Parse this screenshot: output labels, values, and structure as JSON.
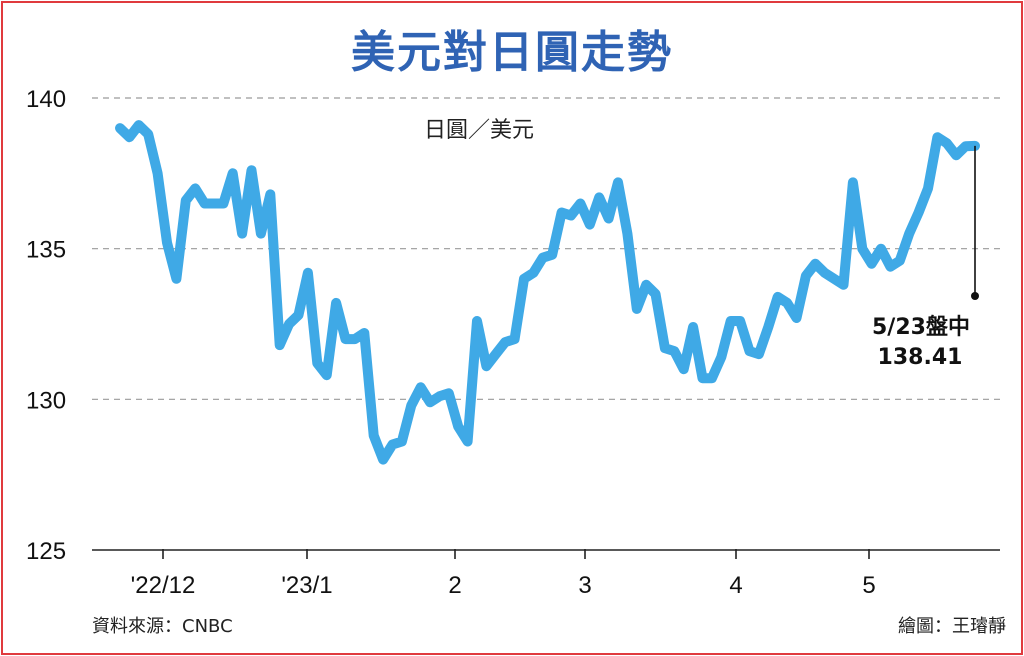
{
  "chart_data": {
    "type": "line",
    "title": "美元對日圓走勢",
    "ylabel": "日圓／美元",
    "ylim": [
      125,
      140
    ],
    "yticks": [
      125,
      130,
      135,
      140
    ],
    "x_tick_labels": [
      "'22/12",
      "'23/1",
      "2",
      "3",
      "4",
      "5"
    ],
    "grid": true,
    "line_color": "#3fa9e6",
    "series": [
      {
        "values": [
          139.0,
          138.7,
          139.1,
          138.8,
          137.5,
          135.2,
          134.0,
          136.6,
          137.0,
          136.5,
          136.5,
          136.5,
          137.5,
          135.5,
          137.6,
          135.5,
          136.8,
          131.8,
          132.5,
          132.8,
          134.2,
          131.2,
          130.8,
          133.2,
          132.0,
          132.0,
          132.2,
          128.8,
          128.0,
          128.5,
          128.6,
          129.8,
          130.4,
          129.9,
          130.1,
          130.2,
          129.1,
          128.6,
          132.6,
          131.1,
          131.5,
          131.9,
          132.0,
          134.0,
          134.2,
          134.7,
          134.8,
          136.2,
          136.1,
          136.5,
          135.8,
          136.7,
          136.0,
          137.2,
          135.5,
          133.0,
          133.8,
          133.5,
          131.7,
          131.6,
          131.0,
          132.4,
          130.7,
          130.7,
          131.4,
          132.6,
          132.6,
          131.6,
          131.5,
          132.4,
          133.4,
          133.2,
          132.7,
          134.1,
          134.5,
          134.2,
          134.0,
          133.8,
          137.2,
          135.0,
          134.5,
          135.0,
          134.4,
          134.6,
          135.5,
          136.2,
          137.0,
          138.7,
          138.5,
          138.1,
          138.4,
          138.41
        ]
      }
    ],
    "annotation": {
      "line1": "5/23盤中",
      "line2": "138.41"
    }
  },
  "source": "資料來源：CNBC",
  "credit": "繪圖：王璿靜"
}
